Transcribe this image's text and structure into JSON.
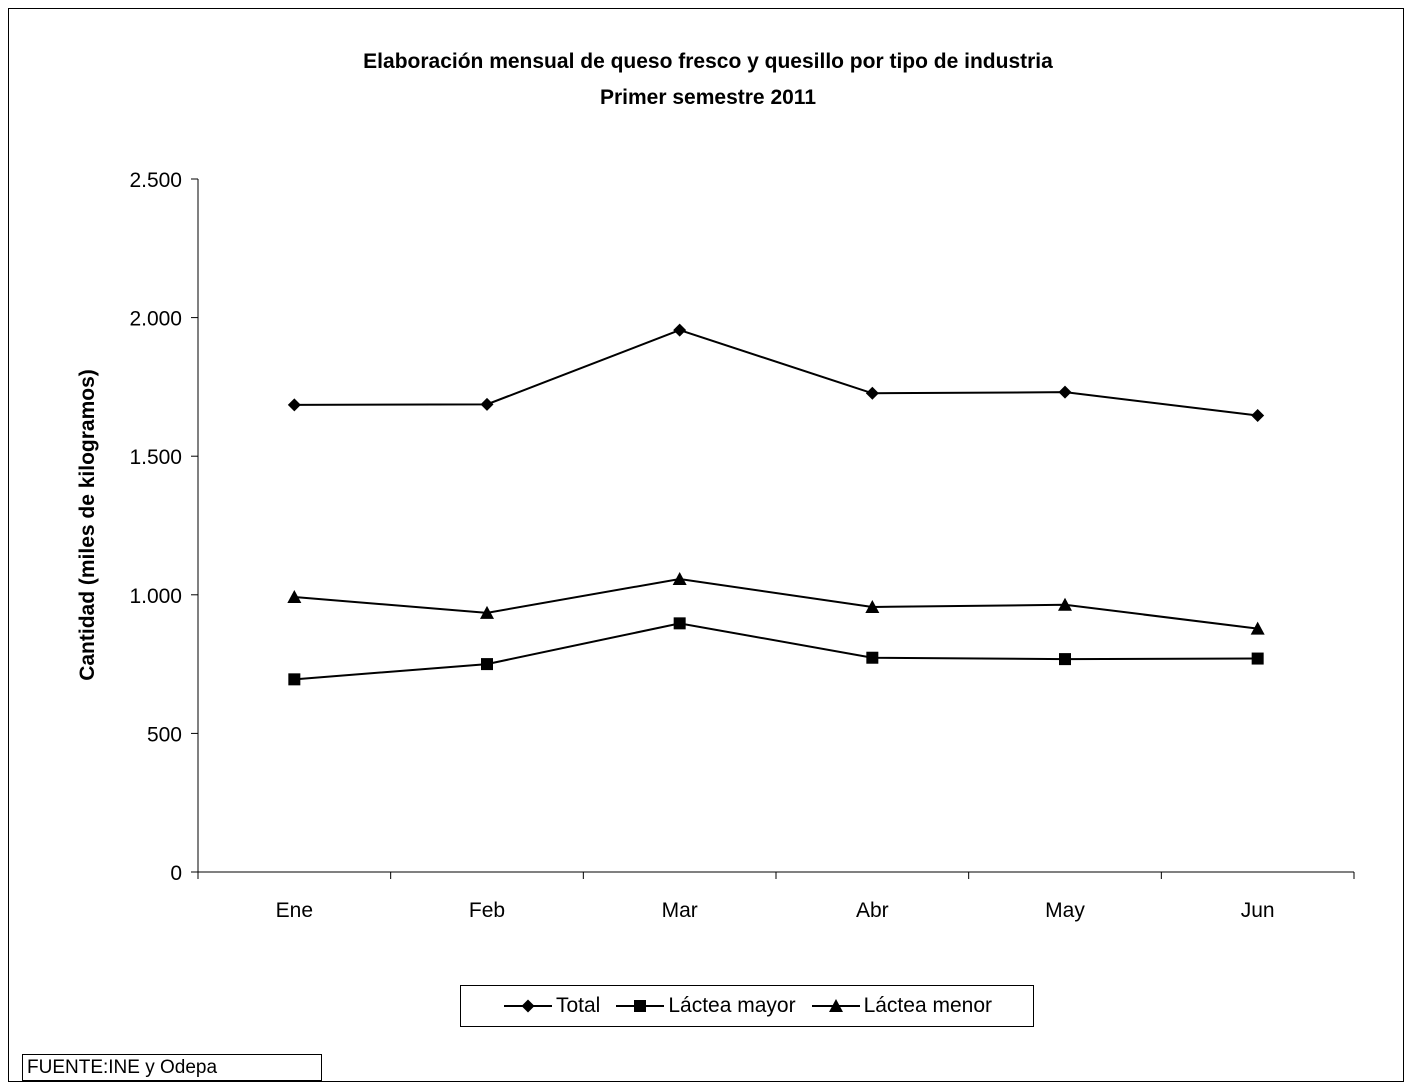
{
  "chart_data": {
    "type": "line",
    "title": "Elaboración mensual de queso fresco y quesillo por tipo de industria",
    "subtitle": "Primer semestre 2011",
    "xlabel": "",
    "ylabel": "Cantidad (miles de kilogramos)",
    "categories": [
      "Ene",
      "Feb",
      "Mar",
      "Abr",
      "May",
      "Jun"
    ],
    "ylim": [
      0,
      2500
    ],
    "yticks": [
      0,
      500,
      1000,
      1500,
      2000,
      2500
    ],
    "ytick_labels": [
      "0",
      "500",
      "1.000",
      "1.500",
      "2.000",
      "2.500"
    ],
    "grid": false,
    "legend_position": "bottom",
    "series": [
      {
        "name": "Total",
        "marker": "diamond",
        "values": [
          1685,
          1687,
          1955,
          1727,
          1731,
          1647
        ]
      },
      {
        "name": "Láctea mayor",
        "marker": "square",
        "values": [
          695,
          750,
          897,
          773,
          768,
          770
        ]
      },
      {
        "name": "Láctea menor",
        "marker": "triangle",
        "values": [
          992,
          935,
          1057,
          956,
          964,
          878
        ]
      }
    ],
    "colors": {
      "line": "#000000",
      "background": "#ffffff"
    }
  },
  "source": "FUENTE:INE y Odepa"
}
